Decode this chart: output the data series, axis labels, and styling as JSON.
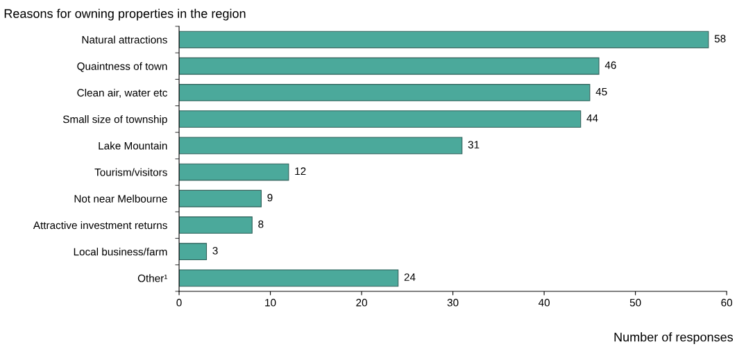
{
  "chart_data": {
    "type": "bar",
    "orientation": "horizontal",
    "title": "Reasons for owning properties in the region",
    "xlabel": "Number of responses",
    "categories": [
      "Natural attractions",
      "Quaintness of town",
      "Clean air, water etc",
      "Small size of township",
      "Lake Mountain",
      "Tourism/visitors",
      "Not near Melbourne",
      "Attractive investment returns",
      "Local business/farm",
      "Other¹"
    ],
    "values": [
      58,
      46,
      45,
      44,
      31,
      12,
      9,
      8,
      3,
      24
    ],
    "color": "#4ba99b",
    "xlim": [
      0,
      60
    ],
    "xticks": [
      0,
      10,
      20,
      30,
      40,
      50,
      60
    ],
    "data_labels": true,
    "grid": false,
    "legend": false
  }
}
